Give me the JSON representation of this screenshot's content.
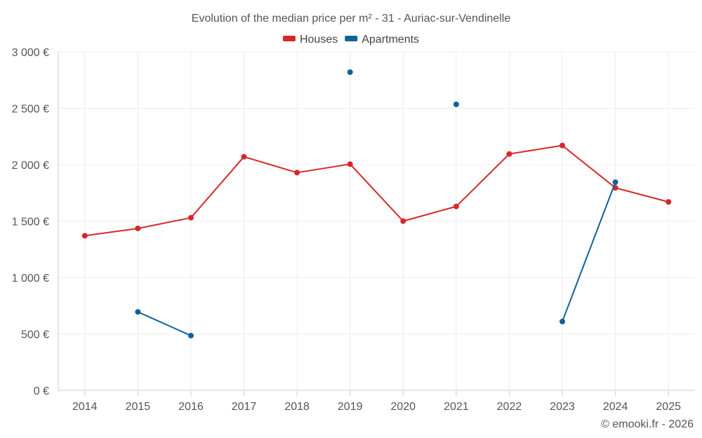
{
  "chart_data": {
    "type": "line",
    "title": "Evolution of the median price per m² - 31 - Auriac-sur-Vendinelle",
    "categories": [
      "2014",
      "2015",
      "2016",
      "2017",
      "2018",
      "2019",
      "2020",
      "2021",
      "2022",
      "2023",
      "2024",
      "2025"
    ],
    "series": [
      {
        "name": "Houses",
        "color": "#d62728",
        "values": [
          1370,
          1435,
          1530,
          2070,
          1930,
          2005,
          1500,
          1630,
          2095,
          2170,
          1795,
          1670
        ]
      },
      {
        "name": "Apartments",
        "color": "#0f6396",
        "values": [
          null,
          695,
          485,
          null,
          null,
          2820,
          null,
          2535,
          null,
          610,
          1845,
          null
        ]
      }
    ],
    "yticks": [
      "0 €",
      "500 €",
      "1 000 €",
      "1 500 €",
      "2 000 €",
      "2 500 €",
      "3 000 €"
    ],
    "ylim": [
      0,
      3000
    ],
    "xlabel": "",
    "ylabel": "",
    "grid": true,
    "legend_position": "top-center"
  },
  "credit": "© emooki.fr - 2026"
}
